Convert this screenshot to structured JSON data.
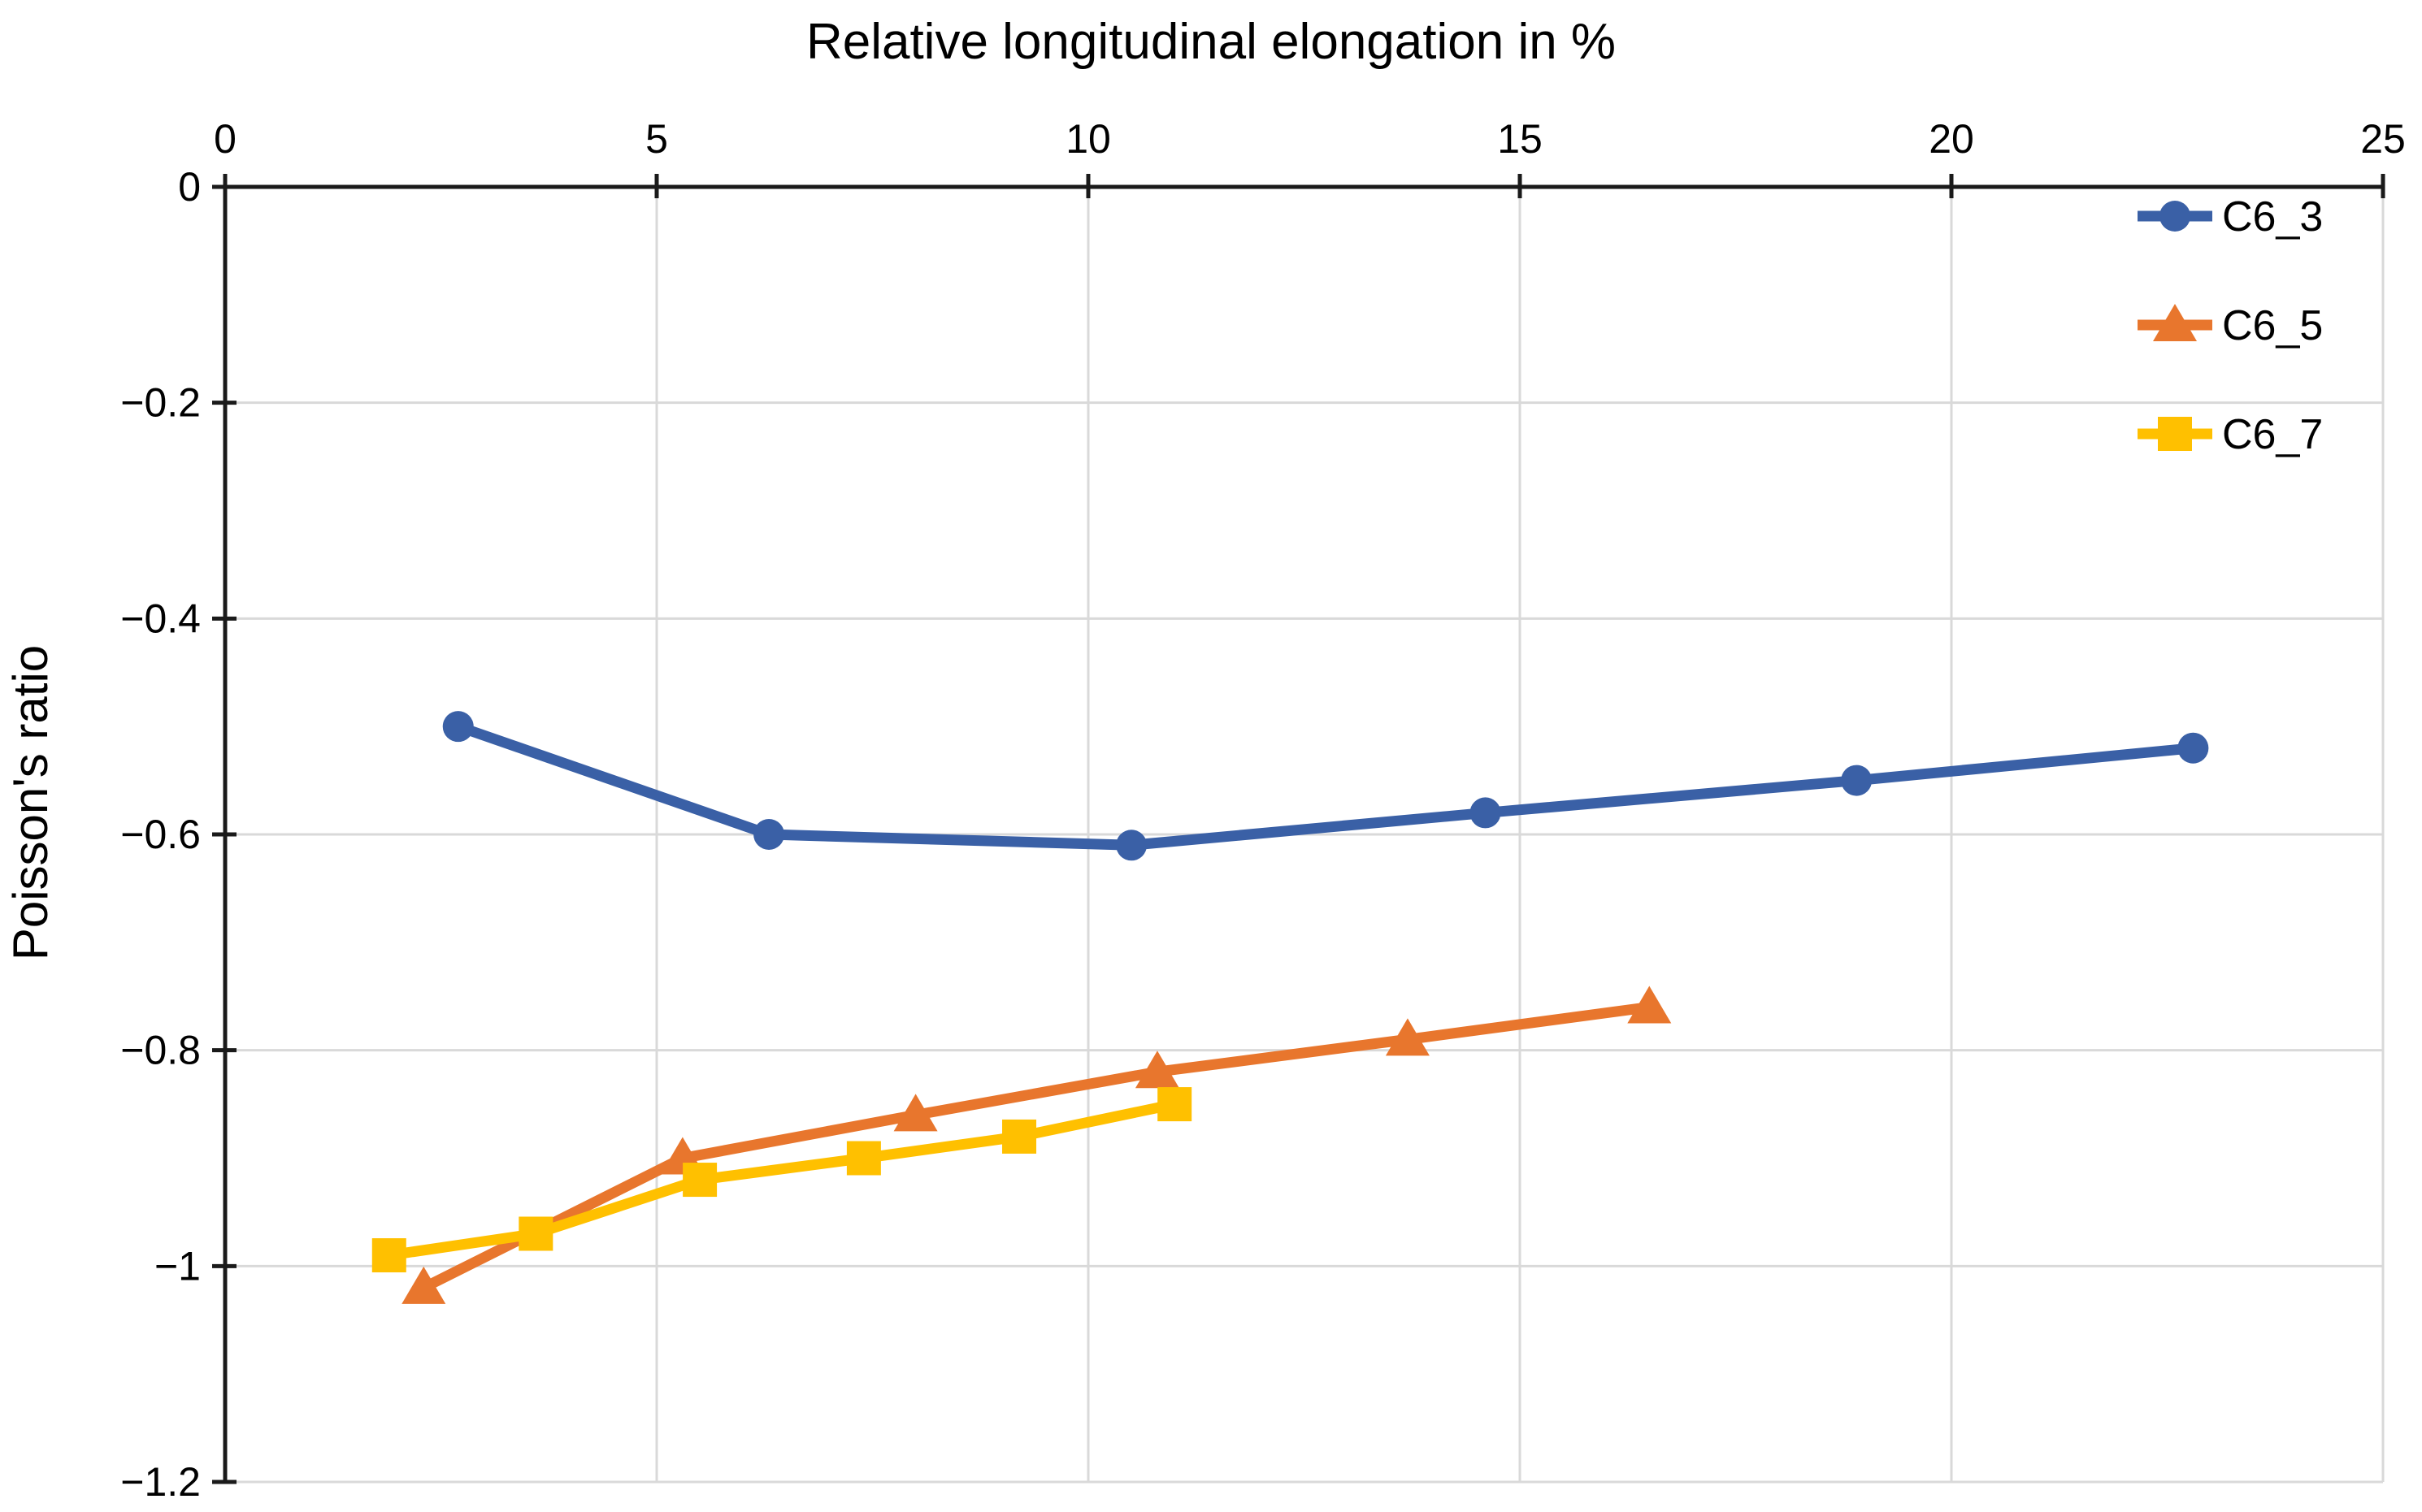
{
  "chart": {
    "title": "Relative longitudinal elongation in %",
    "y_axis_title": "Poisson's ratio",
    "colors": {
      "background": "#ffffff",
      "axis": "#1a1a1a",
      "gridline": "#d9d9d9",
      "text": "#000000",
      "series_blue": "#3a60a6",
      "series_orange": "#e8762d",
      "series_yellow": "#ffc000"
    }
  },
  "legend": {
    "items": [
      {
        "label": "C6_3"
      },
      {
        "label": "C6_5"
      },
      {
        "label": "C6_7"
      }
    ]
  },
  "chart_data": {
    "type": "line",
    "title": "Relative longitudinal elongation in %",
    "xlabel": "Relative longitudinal elongation in %",
    "ylabel": "Poisson's ratio",
    "xlim": [
      0,
      25
    ],
    "ylim": [
      -1.2,
      0
    ],
    "x_ticks": [
      0,
      5,
      10,
      15,
      20,
      25
    ],
    "x_tick_labels": [
      "0",
      "5",
      "10",
      "15",
      "20",
      "25"
    ],
    "y_ticks": [
      0,
      -0.2,
      -0.4,
      -0.6,
      -0.8,
      -1,
      -1.2
    ],
    "y_tick_labels": [
      "0",
      "−0.2",
      "−0.4",
      "−0.6",
      "−0.8",
      "−1",
      "−1.2"
    ],
    "grid": true,
    "x_axis_position": "top",
    "legend_position": "top-right-inside",
    "series": [
      {
        "name": "C6_3",
        "color": "#3a60a6",
        "marker": "circle",
        "points": [
          [
            2.7,
            -0.5
          ],
          [
            6.3,
            -0.6
          ],
          [
            10.5,
            -0.61
          ],
          [
            14.6,
            -0.58
          ],
          [
            18.9,
            -0.55
          ],
          [
            22.8,
            -0.52
          ]
        ]
      },
      {
        "name": "C6_5",
        "color": "#e8762d",
        "marker": "triangle",
        "points": [
          [
            2.3,
            -1.02
          ],
          [
            5.3,
            -0.9
          ],
          [
            8.0,
            -0.86
          ],
          [
            10.8,
            -0.82
          ],
          [
            13.7,
            -0.79
          ],
          [
            16.5,
            -0.76
          ]
        ]
      },
      {
        "name": "C6_7",
        "color": "#ffc000",
        "marker": "square",
        "points": [
          [
            1.9,
            -0.99
          ],
          [
            3.6,
            -0.97
          ],
          [
            5.5,
            -0.92
          ],
          [
            7.4,
            -0.9
          ],
          [
            9.2,
            -0.88
          ],
          [
            11.0,
            -0.85
          ]
        ]
      }
    ]
  }
}
